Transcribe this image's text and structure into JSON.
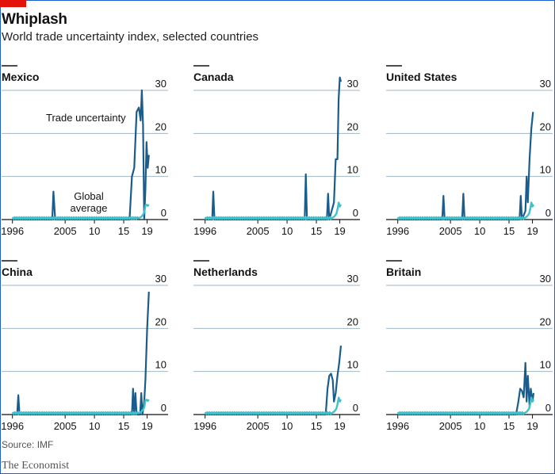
{
  "header": {
    "title": "Whiplash",
    "subtitle": "World trade uncertainty index, selected countries"
  },
  "footer": {
    "source": "Source: IMF",
    "brand": "The Economist"
  },
  "colors": {
    "country_line": "#1a5d8c",
    "global_line": "#3fc1c9",
    "grid": "#9fb7c2",
    "axis": "#121212",
    "accent": "#e3120b"
  },
  "chart_data": [
    {
      "type": "line",
      "title": "Mexico",
      "x_tick_labels": [
        "1996",
        "2005",
        "10",
        "15",
        "19"
      ],
      "y_tick_labels": [
        "0",
        "10",
        "20",
        "30"
      ],
      "ylim": [
        0,
        30
      ],
      "annotations": [
        "Trade uncertainty",
        "Global",
        "average"
      ],
      "series": [
        {
          "role": "country",
          "x": [
            1996,
            2002.8,
            2003,
            2003.3,
            2016.0,
            2016.4,
            2016.8,
            2017.2,
            2017.6,
            2017.9,
            2018.1,
            2018.3,
            2018.5,
            2018.7,
            2018.9,
            2019.1,
            2019.3
          ],
          "values": [
            0,
            0,
            6.5,
            0,
            0,
            10,
            12,
            25,
            26,
            23,
            30,
            22,
            0,
            7,
            18,
            12,
            15
          ]
        },
        {
          "role": "global",
          "name": "Global average",
          "x": [
            1996,
            2017.5,
            2018.0,
            2018.5,
            2018.8,
            2019.0,
            2019.3
          ],
          "values": [
            0.3,
            0.3,
            0.6,
            1.5,
            4.0,
            3.0,
            3.5
          ]
        }
      ]
    },
    {
      "type": "line",
      "title": "Canada",
      "x_tick_labels": [
        "1996",
        "2005",
        "10",
        "15",
        "19"
      ],
      "y_tick_labels": [
        "0",
        "10",
        "20",
        "30"
      ],
      "ylim": [
        0,
        30
      ],
      "series": [
        {
          "role": "country",
          "x": [
            1996,
            1997.2,
            1997.4,
            1997.6,
            2013.0,
            2013.2,
            2013.4,
            2016.8,
            2017.0,
            2017.2,
            2018.0,
            2018.3,
            2018.6,
            2018.8,
            2019.0,
            2019.2
          ],
          "values": [
            0,
            0,
            6.5,
            0,
            0,
            10.5,
            0,
            0,
            6,
            0,
            4,
            14,
            14,
            28,
            33,
            32
          ]
        },
        {
          "role": "global",
          "name": "Global average",
          "x": [
            1996,
            2017.5,
            2018.0,
            2018.5,
            2018.8,
            2019.0,
            2019.2
          ],
          "values": [
            0.3,
            0.3,
            0.6,
            1.5,
            4.0,
            3.0,
            3.5
          ]
        }
      ]
    },
    {
      "type": "line",
      "title": "United States",
      "x_tick_labels": [
        "1996",
        "2005",
        "10",
        "15",
        "19"
      ],
      "y_tick_labels": [
        "0",
        "10",
        "20",
        "30"
      ],
      "ylim": [
        0,
        30
      ],
      "series": [
        {
          "role": "country",
          "x": [
            1996,
            2003.6,
            2003.8,
            2004.0,
            2007.0,
            2007.2,
            2007.4,
            2016.8,
            2017.0,
            2017.2,
            2017.8,
            2018.0,
            2018.2,
            2018.5,
            2018.8,
            2019.1
          ],
          "values": [
            0,
            0,
            5.5,
            0,
            0,
            6,
            0,
            0,
            5.5,
            0,
            2,
            10,
            4,
            14,
            21,
            25
          ]
        },
        {
          "role": "global",
          "name": "Global average",
          "x": [
            1996,
            2017.5,
            2018.0,
            2018.5,
            2018.8,
            2019.0,
            2019.2
          ],
          "values": [
            0.3,
            0.3,
            0.6,
            1.5,
            4.0,
            3.0,
            3.5
          ]
        }
      ]
    },
    {
      "type": "line",
      "title": "China",
      "x_tick_labels": [
        "1996",
        "2005",
        "10",
        "15",
        "19"
      ],
      "y_tick_labels": [
        "0",
        "10",
        "20",
        "30"
      ],
      "ylim": [
        0,
        30
      ],
      "series": [
        {
          "role": "country",
          "x": [
            1996,
            1996.8,
            1997.0,
            1997.2,
            2016.4,
            2016.6,
            2016.8,
            2017.0,
            2017.2,
            2017.8,
            2018.0,
            2018.2,
            2018.5,
            2018.7,
            2019.0,
            2019.3
          ],
          "values": [
            0,
            0,
            4.5,
            0,
            0,
            6,
            0,
            5,
            0,
            0,
            5,
            0,
            3,
            8,
            20,
            28.5
          ]
        },
        {
          "role": "global",
          "name": "Global average",
          "x": [
            1996,
            2017.5,
            2018.0,
            2018.5,
            2018.8,
            2019.0,
            2019.3
          ],
          "values": [
            0.3,
            0.3,
            0.6,
            1.5,
            4.0,
            3.0,
            3.5
          ]
        }
      ]
    },
    {
      "type": "line",
      "title": "Netherlands",
      "x_tick_labels": [
        "1996",
        "2005",
        "10",
        "15",
        "19"
      ],
      "y_tick_labels": [
        "0",
        "10",
        "20",
        "30"
      ],
      "ylim": [
        0,
        30
      ],
      "series": [
        {
          "role": "country",
          "x": [
            1996,
            2016.6,
            2016.9,
            2017.2,
            2017.5,
            2017.8,
            2018.0,
            2018.3,
            2018.6,
            2018.9,
            2019.2
          ],
          "values": [
            0,
            0,
            6,
            9,
            9.5,
            8,
            3,
            5,
            9,
            12,
            16
          ]
        },
        {
          "role": "global",
          "name": "Global average",
          "x": [
            1996,
            2017.5,
            2018.0,
            2018.5,
            2018.8,
            2019.0,
            2019.2
          ],
          "values": [
            0.3,
            0.3,
            0.6,
            1.5,
            4.0,
            3.0,
            3.5
          ]
        }
      ]
    },
    {
      "type": "line",
      "title": "Britain",
      "x_tick_labels": [
        "1996",
        "2005",
        "10",
        "15",
        "19"
      ],
      "y_tick_labels": [
        "0",
        "10",
        "20",
        "30"
      ],
      "ylim": [
        0,
        30
      ],
      "series": [
        {
          "role": "country",
          "x": [
            1996,
            2016.2,
            2016.6,
            2016.9,
            2017.2,
            2017.5,
            2017.8,
            2018.0,
            2018.2,
            2018.5,
            2018.7,
            2019.0,
            2019.2
          ],
          "values": [
            0,
            0,
            3,
            6,
            5.5,
            4,
            12,
            3,
            9,
            2,
            6,
            3,
            5
          ]
        },
        {
          "role": "global",
          "name": "Global average",
          "x": [
            1996,
            2017.5,
            2018.0,
            2018.5,
            2018.8,
            2019.0,
            2019.2
          ],
          "values": [
            0.3,
            0.3,
            0.6,
            1.5,
            4.0,
            3.0,
            3.5
          ]
        }
      ]
    }
  ]
}
